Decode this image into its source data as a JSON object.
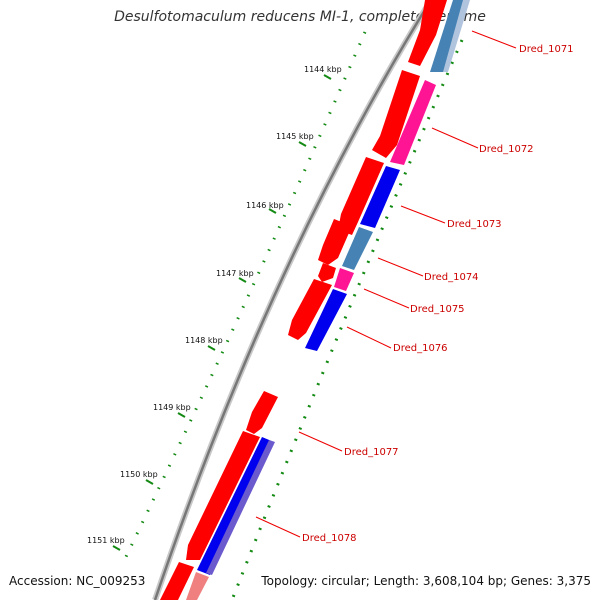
{
  "title": "Desulfotomaculum reducens MI-1, complete genome",
  "footer": {
    "accession": "Accession: NC_009253",
    "summary": "Topology: circular; Length: 3,608,104 bp; Genes: 3,375"
  },
  "colors": {
    "forward_gene": "#ff0000",
    "reverse_blue": "#0000ee",
    "reverse_steel": "#4682b4",
    "reverse_pink": "#ff1493",
    "reverse_light": "#f08080",
    "reverse_lavender": "#6a5acd",
    "label_red": "#cc0000",
    "backbone": "#888888",
    "tick_green": "#007700"
  },
  "kbp_ticks": [
    "1144 kbp",
    "1145 kbp",
    "1146 kbp",
    "1147 kbp",
    "1148 kbp",
    "1149 kbp",
    "1150 kbp",
    "1151 kbp"
  ],
  "gene_labels": [
    "Dred_1071",
    "Dred_1072",
    "Dred_1073",
    "Dred_1074",
    "Dred_1075",
    "Dred_1076",
    "Dred_1077",
    "Dred_1078"
  ]
}
